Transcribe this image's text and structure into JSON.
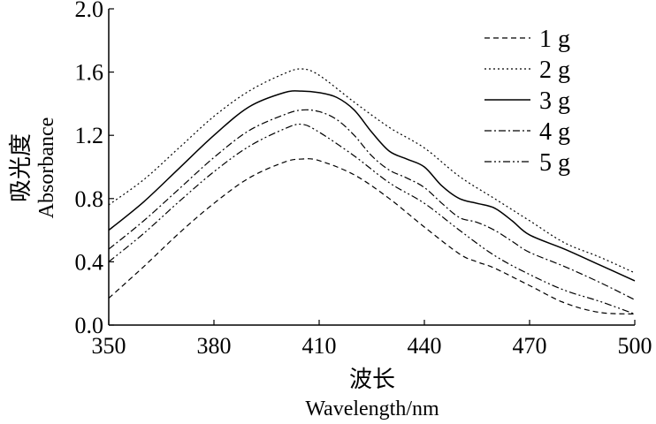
{
  "chart_data": {
    "type": "line",
    "title": "",
    "xlabel_cn": "波长",
    "xlabel": "Wavelength/nm",
    "ylabel_cn": "吸光度",
    "ylabel": "Absorbance",
    "xlim": [
      350,
      500
    ],
    "ylim": [
      0.0,
      2.0
    ],
    "xticks": [
      "350",
      "380",
      "410",
      "440",
      "470",
      "500"
    ],
    "xtick_values": [
      350,
      380,
      410,
      440,
      470,
      500
    ],
    "yticks": [
      "0.0",
      "0.4",
      "0.8",
      "1.2",
      "1.6",
      "2.0"
    ],
    "ytick_values": [
      0.0,
      0.4,
      0.8,
      1.2,
      1.6,
      2.0
    ],
    "grid": false,
    "legend_position": "top-right",
    "series": [
      {
        "name": "1 g",
        "style": "dashed",
        "x": [
          350,
          360,
          370,
          380,
          390,
          400,
          405,
          410,
          420,
          430,
          440,
          450,
          455,
          460,
          470,
          480,
          490,
          500
        ],
        "y": [
          0.17,
          0.37,
          0.58,
          0.77,
          0.93,
          1.03,
          1.05,
          1.04,
          0.95,
          0.8,
          0.62,
          0.45,
          0.4,
          0.36,
          0.25,
          0.14,
          0.08,
          0.07
        ]
      },
      {
        "name": "2 g",
        "style": "dotted",
        "x": [
          350,
          360,
          370,
          380,
          390,
          400,
          405,
          410,
          420,
          430,
          440,
          450,
          460,
          470,
          480,
          490,
          500
        ],
        "y": [
          0.76,
          0.92,
          1.12,
          1.32,
          1.48,
          1.59,
          1.62,
          1.58,
          1.41,
          1.25,
          1.12,
          0.94,
          0.8,
          0.66,
          0.52,
          0.43,
          0.33
        ]
      },
      {
        "name": "3 g",
        "style": "solid",
        "x": [
          350,
          360,
          370,
          380,
          390,
          400,
          405,
          410,
          415,
          420,
          425,
          430,
          435,
          440,
          445,
          450,
          455,
          460,
          465,
          470,
          480,
          490,
          500
        ],
        "y": [
          0.6,
          0.78,
          0.99,
          1.2,
          1.38,
          1.47,
          1.48,
          1.47,
          1.44,
          1.36,
          1.22,
          1.1,
          1.05,
          1.0,
          0.88,
          0.8,
          0.77,
          0.74,
          0.66,
          0.57,
          0.48,
          0.38,
          0.28
        ]
      },
      {
        "name": "4 g",
        "style": "dash-dot",
        "x": [
          350,
          360,
          370,
          380,
          390,
          400,
          405,
          410,
          415,
          420,
          425,
          430,
          435,
          440,
          445,
          450,
          455,
          460,
          465,
          470,
          480,
          490,
          500
        ],
        "y": [
          0.48,
          0.66,
          0.86,
          1.06,
          1.23,
          1.33,
          1.36,
          1.35,
          1.3,
          1.2,
          1.07,
          0.98,
          0.93,
          0.87,
          0.77,
          0.68,
          0.65,
          0.6,
          0.53,
          0.46,
          0.37,
          0.27,
          0.16
        ]
      },
      {
        "name": "5 g",
        "style": "dash-dot-dot",
        "x": [
          350,
          360,
          370,
          380,
          390,
          400,
          405,
          410,
          420,
          430,
          440,
          450,
          460,
          470,
          480,
          490,
          500
        ],
        "y": [
          0.4,
          0.58,
          0.78,
          0.97,
          1.13,
          1.24,
          1.27,
          1.22,
          1.07,
          0.9,
          0.77,
          0.6,
          0.44,
          0.32,
          0.22,
          0.15,
          0.07
        ]
      }
    ]
  }
}
